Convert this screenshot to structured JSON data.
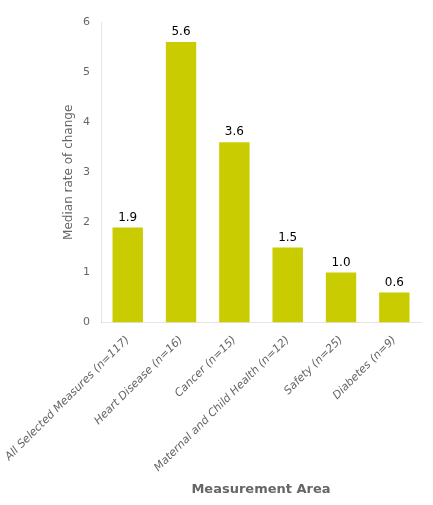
{
  "chart_data": {
    "type": "bar",
    "categories": [
      "All Selected Measures (n=117)",
      "Heart Disease (n=16)",
      "Cancer (n=15)",
      "Maternal and Child Health (n=12)",
      "Safety (n=25)",
      "Diabetes (n=9)"
    ],
    "values": [
      1.9,
      5.6,
      3.6,
      1.5,
      1.0,
      0.6
    ],
    "value_labels": [
      "1.9",
      "5.6",
      "3.6",
      "1.5",
      "1.0",
      "0.6"
    ],
    "data_labels": true,
    "color": "#C8CC00",
    "x_label": "Measurement Area",
    "y_label": "Median rate of change",
    "ylim": [
      0,
      6
    ],
    "yticks": [
      0,
      1,
      2,
      3,
      4,
      5,
      6
    ],
    "grid": false
  }
}
